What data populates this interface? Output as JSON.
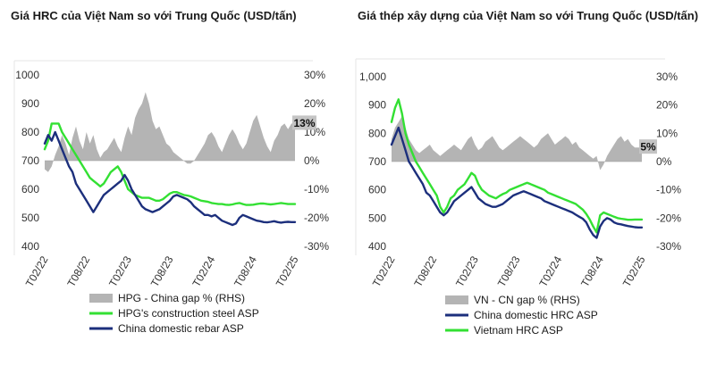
{
  "chart_data": [
    {
      "type": "line",
      "title": "Giá HRC của Việt Nam so với Trung Quốc (USD/tấn)",
      "x_ticks": [
        "T02/22",
        "T08/22",
        "T02/23",
        "T08/23",
        "T02/24",
        "T08/24",
        "T02/25"
      ],
      "y_left_ticks": [
        "1000",
        "900",
        "800",
        "700",
        "600",
        "500",
        "400"
      ],
      "y_right_ticks": [
        "30%",
        "20%",
        "10%",
        "0%",
        "-10%",
        "-20%",
        "-30%"
      ],
      "ylim_left": [
        400,
        1000
      ],
      "ylim_right": [
        -30,
        30
      ],
      "callout": "13%",
      "series": [
        {
          "name": "HPG - China gap % (RHS)",
          "type": "area",
          "axis": "right",
          "color": "#b4b4b4",
          "x": [
            0,
            0.5,
            1,
            1.5,
            2,
            2.5,
            3,
            3.5,
            4,
            4.5,
            5,
            5.5,
            6,
            6.5,
            7,
            7.5,
            8,
            8.5,
            9,
            9.5,
            10,
            10.5,
            11,
            11.5,
            12,
            12.5,
            13,
            13.5,
            14,
            14.5,
            15,
            15.5,
            16,
            16.5,
            17,
            17.5,
            18,
            18.5,
            19,
            19.5,
            20,
            20.5,
            21,
            21.5,
            22,
            22.5,
            23,
            23.5,
            24,
            24.5,
            25,
            25.5,
            26,
            26.5,
            27,
            27.5,
            28,
            28.5,
            29,
            29.5,
            30,
            30.5,
            31,
            31.5,
            32,
            32.5,
            33,
            33.5,
            34,
            34.5,
            35,
            35.5,
            36
          ],
          "values": [
            -3,
            -4,
            -2,
            2,
            5,
            9,
            6,
            2,
            8,
            12,
            7,
            4,
            10,
            6,
            9,
            4,
            1,
            3,
            4,
            6,
            8,
            5,
            3,
            8,
            12,
            9,
            15,
            18,
            20,
            24,
            20,
            14,
            11,
            12,
            9,
            6,
            5,
            3,
            2,
            1,
            0,
            -1,
            -1,
            0,
            2,
            4,
            6,
            9,
            10,
            8,
            5,
            3,
            6,
            9,
            11,
            9,
            6,
            4,
            6,
            10,
            14,
            16,
            12,
            8,
            5,
            3,
            7,
            9,
            12,
            13,
            11,
            13,
            13
          ]
        },
        {
          "name": "HPG's construction steel ASP",
          "type": "line",
          "axis": "left",
          "color": "#33e033",
          "x": [
            0,
            0.5,
            1,
            1.5,
            2,
            2.5,
            3,
            3.5,
            4,
            4.5,
            5,
            5.5,
            6,
            6.5,
            7,
            7.5,
            8,
            8.5,
            9,
            9.5,
            10,
            10.5,
            11,
            11.5,
            12,
            12.5,
            13,
            13.5,
            14,
            14.5,
            15,
            15.5,
            16,
            16.5,
            17,
            17.5,
            18,
            18.5,
            19,
            19.5,
            20,
            20.5,
            21,
            21.5,
            22,
            22.5,
            23,
            23.5,
            24,
            24.5,
            25,
            25.5,
            26,
            26.5,
            27,
            27.5,
            28,
            28.5,
            29,
            29.5,
            30,
            30.5,
            31,
            31.5,
            32,
            32.5,
            33,
            33.5,
            34,
            34.5,
            35,
            35.5,
            36
          ],
          "values": [
            740,
            770,
            830,
            830,
            830,
            800,
            780,
            760,
            740,
            720,
            700,
            680,
            660,
            640,
            630,
            620,
            610,
            620,
            640,
            660,
            670,
            680,
            660,
            630,
            600,
            590,
            580,
            575,
            570,
            570,
            570,
            565,
            560,
            560,
            565,
            575,
            585,
            590,
            590,
            585,
            580,
            578,
            575,
            570,
            565,
            560,
            558,
            556,
            552,
            550,
            548,
            548,
            546,
            545,
            547,
            550,
            552,
            548,
            545,
            545,
            546,
            548,
            550,
            550,
            548,
            547,
            548,
            550,
            552,
            550,
            548,
            548,
            548
          ]
        },
        {
          "name": "China domestic rebar ASP",
          "type": "line",
          "axis": "left",
          "color": "#1c2f7c",
          "x": [
            0,
            0.5,
            1,
            1.5,
            2,
            2.5,
            3,
            3.5,
            4,
            4.5,
            5,
            5.5,
            6,
            6.5,
            7,
            7.5,
            8,
            8.5,
            9,
            9.5,
            10,
            10.5,
            11,
            11.5,
            12,
            12.5,
            13,
            13.5,
            14,
            14.5,
            15,
            15.5,
            16,
            16.5,
            17,
            17.5,
            18,
            18.5,
            19,
            19.5,
            20,
            20.5,
            21,
            21.5,
            22,
            22.5,
            23,
            23.5,
            24,
            24.5,
            25,
            25.5,
            26,
            26.5,
            27,
            27.5,
            28,
            28.5,
            29,
            29.5,
            30,
            30.5,
            31,
            31.5,
            32,
            32.5,
            33,
            33.5,
            34,
            34.5,
            35,
            35.5,
            36
          ],
          "values": [
            760,
            790,
            770,
            800,
            770,
            740,
            710,
            680,
            660,
            620,
            600,
            580,
            560,
            540,
            520,
            540,
            560,
            580,
            590,
            600,
            610,
            620,
            630,
            650,
            630,
            600,
            580,
            560,
            540,
            530,
            525,
            520,
            525,
            530,
            540,
            550,
            560,
            575,
            580,
            575,
            570,
            565,
            555,
            540,
            530,
            520,
            510,
            510,
            505,
            510,
            500,
            490,
            485,
            480,
            475,
            480,
            500,
            510,
            505,
            500,
            495,
            490,
            488,
            485,
            484,
            486,
            488,
            485,
            483,
            485,
            486,
            485,
            485
          ]
        }
      ]
    },
    {
      "type": "line",
      "title": "Giá thép xây dựng của Việt Nam so với Trung Quốc (USD/tấn)",
      "x_ticks": [
        "T02/22",
        "T08/22",
        "T02/23",
        "T08/23",
        "T02/24",
        "T08/24",
        "T02/25"
      ],
      "y_left_ticks": [
        "1,000",
        "900",
        "800",
        "700",
        "600",
        "500",
        "400"
      ],
      "y_right_ticks": [
        "30%",
        "20%",
        "10%",
        "0%",
        "-10%",
        "-20%",
        "-30%"
      ],
      "ylim_left": [
        400,
        1000
      ],
      "ylim_right": [
        -30,
        30
      ],
      "callout": "5%",
      "series": [
        {
          "name": "VN - CN gap % (RHS)",
          "type": "area",
          "axis": "right",
          "color": "#b4b4b4",
          "x": [
            0,
            0.5,
            1,
            1.5,
            2,
            2.5,
            3,
            3.5,
            4,
            4.5,
            5,
            5.5,
            6,
            6.5,
            7,
            7.5,
            8,
            8.5,
            9,
            9.5,
            10,
            10.5,
            11,
            11.5,
            12,
            12.5,
            13,
            13.5,
            14,
            14.5,
            15,
            15.5,
            16,
            16.5,
            17,
            17.5,
            18,
            18.5,
            19,
            19.5,
            20,
            20.5,
            21,
            21.5,
            22,
            22.5,
            23,
            23.5,
            24,
            24.5,
            25,
            25.5,
            26,
            26.5,
            27,
            27.5,
            28,
            28.5,
            29,
            29.5,
            30,
            30.5,
            31,
            31.5,
            32,
            32.5,
            33,
            33.5,
            34,
            34.5,
            35,
            35.5,
            36
          ],
          "values": [
            8,
            12,
            14,
            16,
            12,
            8,
            6,
            4,
            3,
            4,
            5,
            6,
            4,
            3,
            2,
            3,
            4,
            5,
            6,
            5,
            4,
            6,
            8,
            9,
            6,
            4,
            5,
            7,
            8,
            9,
            7,
            5,
            4,
            5,
            6,
            7,
            8,
            9,
            8,
            7,
            6,
            5,
            6,
            8,
            9,
            10,
            8,
            6,
            7,
            8,
            9,
            8,
            6,
            7,
            5,
            4,
            3,
            2,
            1,
            2,
            -3,
            -1,
            2,
            4,
            6,
            8,
            9,
            7,
            8,
            6,
            5,
            5,
            5
          ]
        },
        {
          "name": "Vietnam HRC ASP",
          "type": "line",
          "axis": "left",
          "color": "#33e033",
          "x": [
            0,
            0.5,
            1,
            1.5,
            2,
            2.5,
            3,
            3.5,
            4,
            4.5,
            5,
            5.5,
            6,
            6.5,
            7,
            7.5,
            8,
            8.5,
            9,
            9.5,
            10,
            10.5,
            11,
            11.5,
            12,
            12.5,
            13,
            13.5,
            14,
            14.5,
            15,
            15.5,
            16,
            16.5,
            17,
            17.5,
            18,
            18.5,
            19,
            19.5,
            20,
            20.5,
            21,
            21.5,
            22,
            22.5,
            23,
            23.5,
            24,
            24.5,
            25,
            25.5,
            26,
            26.5,
            27,
            27.5,
            28,
            28.5,
            29,
            29.5,
            30,
            30.5,
            31,
            31.5,
            32,
            32.5,
            33,
            33.5,
            34,
            34.5,
            35,
            35.5,
            36
          ],
          "values": [
            840,
            890,
            920,
            870,
            800,
            760,
            730,
            700,
            680,
            660,
            640,
            620,
            600,
            580,
            540,
            520,
            540,
            570,
            580,
            600,
            610,
            620,
            640,
            660,
            650,
            620,
            600,
            590,
            580,
            575,
            570,
            578,
            585,
            590,
            600,
            605,
            610,
            615,
            620,
            625,
            620,
            615,
            610,
            605,
            600,
            590,
            585,
            580,
            575,
            570,
            565,
            560,
            555,
            550,
            540,
            530,
            515,
            495,
            470,
            450,
            510,
            520,
            515,
            510,
            505,
            500,
            498,
            496,
            494,
            494,
            495,
            495,
            495
          ]
        },
        {
          "name": "China domestic HRC ASP",
          "type": "line",
          "axis": "left",
          "color": "#1c2f7c",
          "x": [
            0,
            0.5,
            1,
            1.5,
            2,
            2.5,
            3,
            3.5,
            4,
            4.5,
            5,
            5.5,
            6,
            6.5,
            7,
            7.5,
            8,
            8.5,
            9,
            9.5,
            10,
            10.5,
            11,
            11.5,
            12,
            12.5,
            13,
            13.5,
            14,
            14.5,
            15,
            15.5,
            16,
            16.5,
            17,
            17.5,
            18,
            18.5,
            19,
            19.5,
            20,
            20.5,
            21,
            21.5,
            22,
            22.5,
            23,
            23.5,
            24,
            24.5,
            25,
            25.5,
            26,
            26.5,
            27,
            27.5,
            28,
            28.5,
            29,
            29.5,
            30,
            30.5,
            31,
            31.5,
            32,
            32.5,
            33,
            33.5,
            34,
            34.5,
            35,
            35.5,
            36
          ],
          "values": [
            760,
            790,
            820,
            780,
            740,
            700,
            680,
            660,
            640,
            620,
            590,
            580,
            560,
            540,
            520,
            510,
            520,
            540,
            560,
            570,
            580,
            590,
            600,
            610,
            590,
            570,
            560,
            550,
            545,
            540,
            540,
            545,
            550,
            560,
            570,
            580,
            585,
            590,
            595,
            590,
            585,
            580,
            575,
            570,
            560,
            555,
            550,
            545,
            540,
            535,
            530,
            525,
            520,
            512,
            505,
            498,
            485,
            460,
            440,
            430,
            470,
            490,
            500,
            495,
            485,
            480,
            478,
            475,
            472,
            470,
            468,
            467,
            467
          ]
        }
      ]
    }
  ]
}
